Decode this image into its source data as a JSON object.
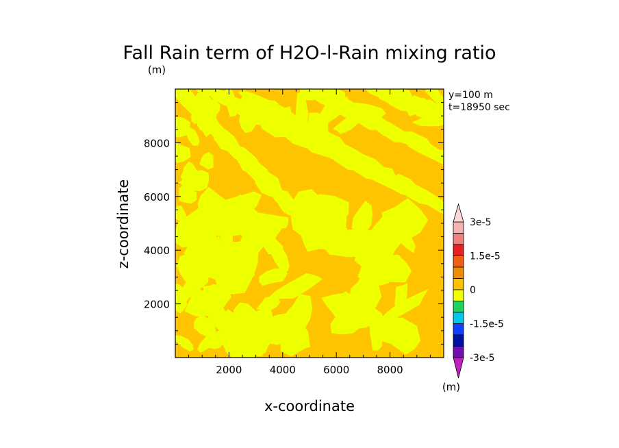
{
  "chart_data": {
    "type": "heatmap",
    "title": "Fall Rain term of H2O-l-Rain mixing ratio",
    "title_units": "(m)",
    "xlabel": "x-coordinate",
    "ylabel": "z-coordinate",
    "info_lines": [
      "y=100 m",
      "t=18950 sec"
    ],
    "xlim": [
      0,
      10000
    ],
    "ylim": [
      0,
      10000
    ],
    "x_ticks": [
      2000,
      4000,
      6000,
      8000
    ],
    "y_ticks": [
      2000,
      4000,
      6000,
      8000
    ],
    "colorbar": {
      "labels": [
        "3e-5",
        "1.5e-5",
        "0",
        "-1.5e-5",
        "-3e-5"
      ],
      "units": "(m)",
      "colors_top_to_bottom": [
        "#f6b0b0",
        "#ef8080",
        "#e82020",
        "#ee6010",
        "#f08c00",
        "#ffc000",
        "#eeff00",
        "#20d060",
        "#00c8e8",
        "#1040ff",
        "#0010a0",
        "#7010b0"
      ],
      "extend_top_color": "#f8d8d8",
      "extend_bottom_color": "#c020c0"
    },
    "fields": {
      "background_value_color": "#ffc400",
      "near_zero_color": "#eeff00"
    }
  }
}
